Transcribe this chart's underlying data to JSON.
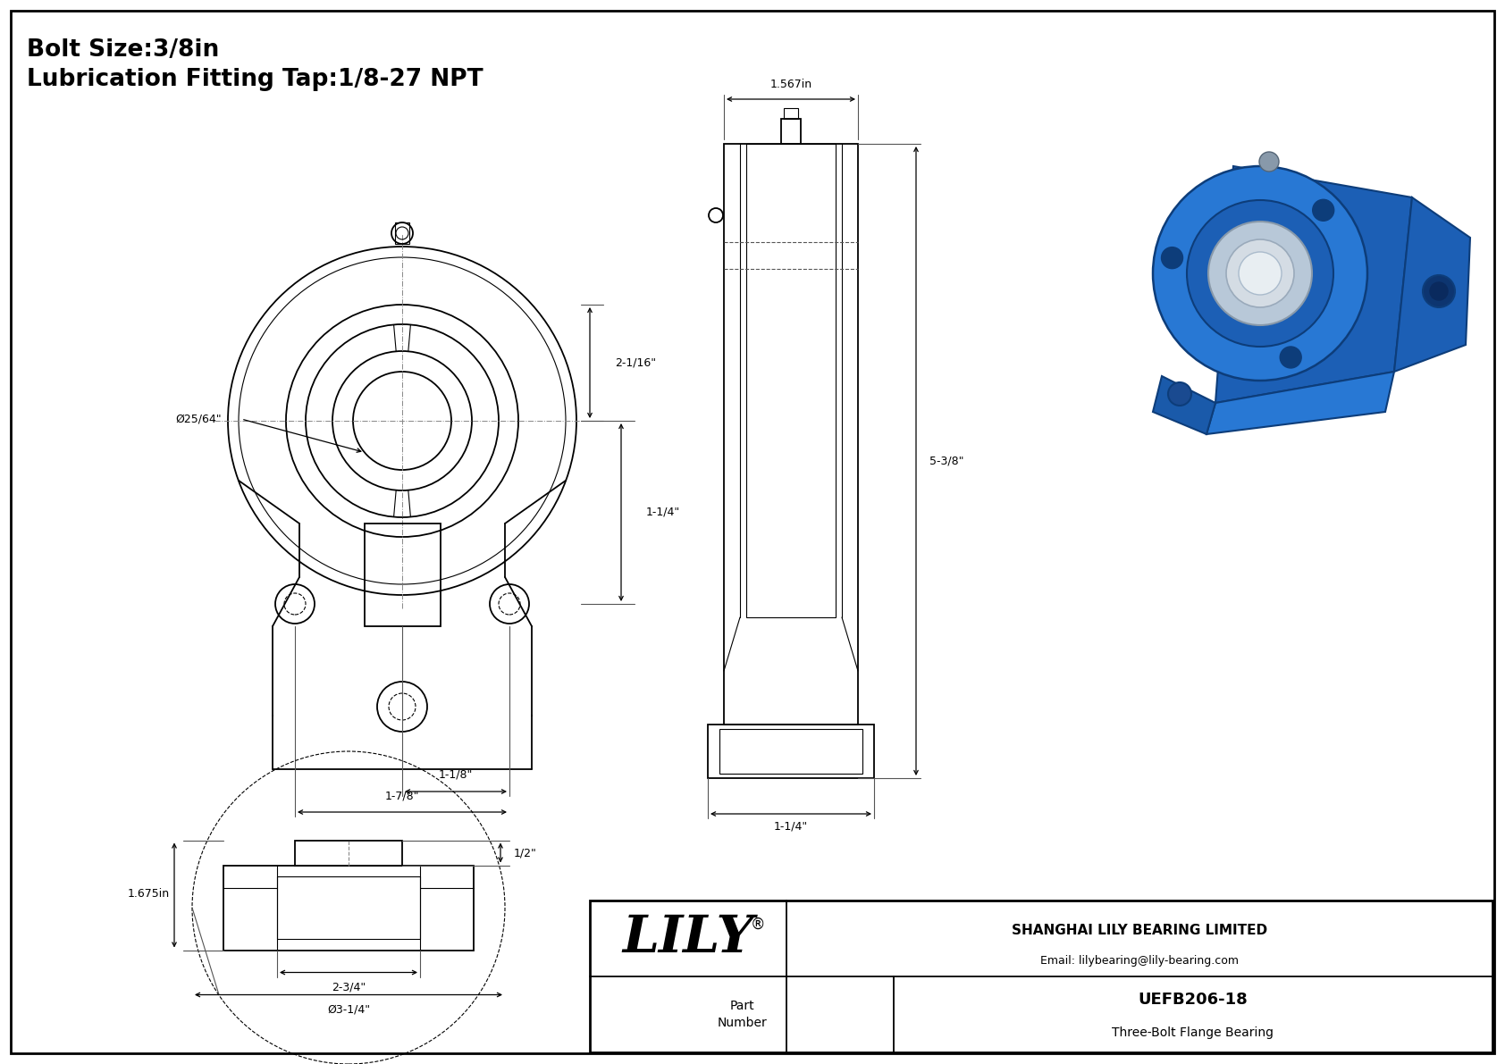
{
  "title_line1": "Bolt Size:3/8in",
  "title_line2": "Lubrication Fitting Tap:1/8-27 NPT",
  "bg_color": "#ffffff",
  "line_color": "#000000",
  "company_name": "SHANGHAI LILY BEARING LIMITED",
  "company_email": "Email: lilybearing@lily-bearing.com",
  "part_label": "Part\nNumber",
  "part_number": "UEFB206-18",
  "part_type": "Three-Bolt Flange Bearing",
  "logo_text": "LILY",
  "dim_phi_bore": "Ø25/64\"",
  "dim_2_1_16": "2-1/16\"",
  "dim_1_1_4_right": "1-1/4\"",
  "dim_1_3_8": "1-1/8\"",
  "dim_1_7_8": "1-7/8\"",
  "dim_1_675": "1.675in",
  "dim_half": "1/2\"",
  "dim_2_3_4": "2-3/4\"",
  "dim_phi_3_1_4": "Ø3-1/4\"",
  "dim_1_567": "1.567in",
  "dim_5_3_8": "5-3/8\"",
  "dim_1_1_4_bottom": "1-1/4\""
}
